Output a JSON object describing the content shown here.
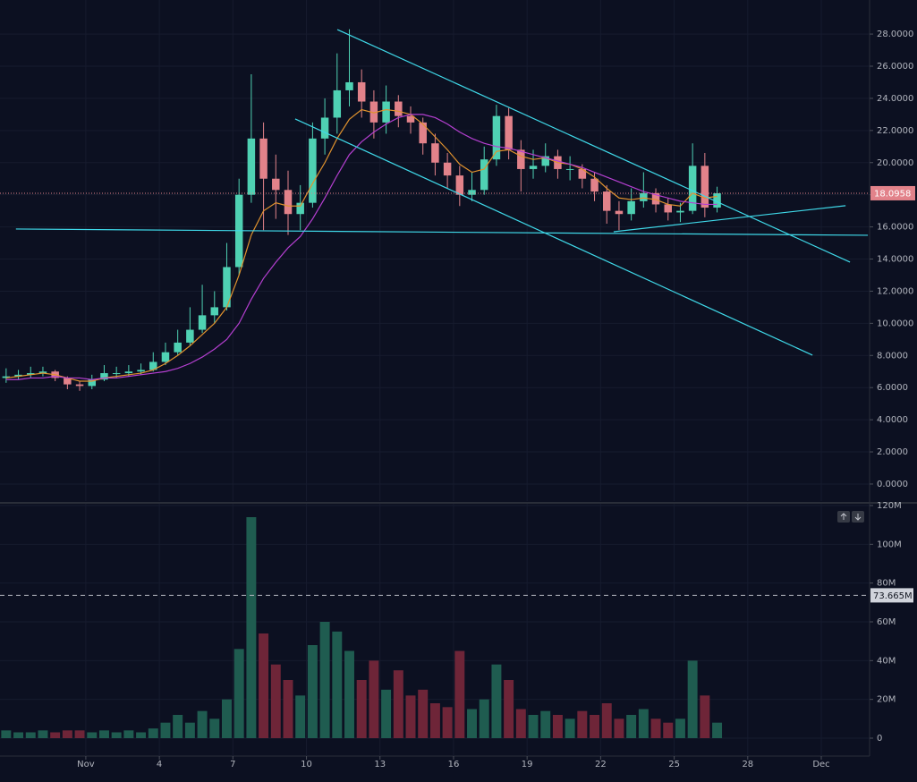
{
  "chart_data": [
    {
      "type": "candlestick",
      "x": [
        -2.25,
        -1.75,
        -1.25,
        -0.75,
        -0.25,
        0.25,
        0.75,
        1.25,
        1.75,
        2.25,
        2.75,
        3.25,
        3.75,
        4.25,
        4.75,
        5.25,
        5.75,
        6.25,
        6.75,
        7.25,
        7.75,
        8.25,
        8.75,
        9.25,
        9.75,
        10.25,
        10.75,
        11.25,
        11.75,
        12.25,
        12.75,
        13.25,
        13.75,
        14.25,
        14.75,
        15.25,
        15.75,
        16.25,
        16.75,
        17.25,
        17.75,
        18.25,
        18.75,
        19.25,
        19.75,
        20.25,
        20.75,
        21.25,
        21.75,
        22.25,
        22.75,
        23.25,
        23.75,
        24.25,
        24.75,
        25.25,
        25.75,
        26.25,
        26.75
      ],
      "open": [
        6.6,
        6.7,
        6.8,
        6.9,
        7.0,
        6.6,
        6.2,
        6.1,
        6.5,
        6.9,
        6.9,
        7.0,
        7.1,
        7.6,
        8.2,
        8.8,
        9.6,
        10.5,
        11.0,
        13.5,
        18.0,
        21.5,
        19.0,
        18.3,
        16.8,
        17.5,
        21.5,
        22.8,
        24.5,
        25.0,
        23.8,
        22.5,
        23.8,
        22.9,
        22.5,
        21.2,
        20.0,
        19.2,
        18.0,
        18.3,
        20.2,
        22.9,
        20.8,
        19.6,
        19.8,
        20.4,
        19.6,
        19.6,
        19.0,
        18.2,
        17.0,
        16.8,
        17.6,
        18.1,
        17.4,
        16.9,
        17.0,
        19.8,
        17.2
      ],
      "high": [
        7.2,
        7.1,
        7.3,
        7.3,
        7.1,
        6.7,
        6.4,
        6.8,
        7.4,
        7.3,
        7.4,
        7.5,
        8.2,
        8.8,
        9.6,
        11.0,
        12.4,
        12.0,
        15.0,
        19.0,
        25.5,
        22.5,
        20.5,
        19.5,
        18.6,
        22.5,
        24.0,
        26.8,
        28.3,
        25.8,
        24.5,
        24.8,
        24.2,
        23.5,
        22.8,
        21.8,
        20.6,
        19.8,
        19.4,
        21.0,
        23.6,
        23.4,
        21.4,
        20.8,
        21.2,
        20.8,
        20.4,
        19.9,
        19.4,
        18.6,
        17.6,
        18.4,
        19.4,
        18.4,
        17.8,
        17.5,
        21.2,
        20.6,
        18.5
      ],
      "low": [
        6.3,
        6.5,
        6.6,
        6.7,
        6.4,
        5.9,
        5.8,
        5.9,
        6.4,
        6.6,
        6.7,
        6.8,
        7.0,
        7.4,
        8.0,
        8.6,
        9.4,
        10.0,
        10.8,
        13.0,
        17.5,
        15.8,
        16.5,
        15.5,
        15.8,
        17.2,
        20.5,
        21.8,
        23.5,
        22.8,
        21.5,
        21.8,
        22.2,
        21.8,
        20.5,
        19.2,
        18.4,
        17.3,
        17.6,
        18.0,
        19.8,
        20.2,
        18.2,
        19.0,
        19.4,
        19.0,
        18.9,
        18.4,
        17.6,
        16.2,
        15.8,
        16.4,
        17.2,
        16.9,
        16.4,
        16.3,
        16.8,
        16.6,
        16.9
      ],
      "close": [
        6.7,
        6.8,
        6.9,
        7.0,
        6.6,
        6.2,
        6.1,
        6.5,
        6.9,
        6.9,
        7.0,
        7.1,
        7.6,
        8.2,
        8.8,
        9.6,
        10.5,
        11.0,
        13.5,
        18.0,
        21.5,
        19.0,
        18.3,
        16.8,
        17.5,
        21.5,
        22.8,
        24.5,
        25.0,
        23.8,
        22.5,
        23.8,
        22.9,
        22.5,
        21.2,
        20.0,
        19.2,
        18.0,
        18.3,
        20.2,
        22.9,
        20.8,
        19.6,
        19.8,
        20.4,
        19.6,
        19.6,
        19.0,
        18.2,
        17.0,
        16.8,
        17.6,
        18.1,
        17.4,
        16.9,
        17.0,
        19.8,
        17.2,
        18.0958
      ],
      "up_color": "#4fd1b3",
      "down_color": "#e2828a",
      "series": [
        {
          "color": "#e0922e",
          "values": [
            6.6,
            6.7,
            6.8,
            6.9,
            6.8,
            6.6,
            6.4,
            6.4,
            6.6,
            6.7,
            6.8,
            6.9,
            7.1,
            7.5,
            8.0,
            8.6,
            9.3,
            10.0,
            11.0,
            13.0,
            15.5,
            17.0,
            17.5,
            17.3,
            17.3,
            18.7,
            20.0,
            21.5,
            22.7,
            23.3,
            23.1,
            23.3,
            23.2,
            23.0,
            22.4,
            21.6,
            20.8,
            19.9,
            19.4,
            19.6,
            20.7,
            20.8,
            20.4,
            20.2,
            20.3,
            20.0,
            19.9,
            19.6,
            19.1,
            18.4,
            17.8,
            17.7,
            17.8,
            17.7,
            17.4,
            17.3,
            18.1,
            17.8,
            17.9
          ]
        },
        {
          "color": "#b43fd0",
          "values": [
            6.5,
            6.5,
            6.6,
            6.6,
            6.7,
            6.6,
            6.6,
            6.5,
            6.6,
            6.6,
            6.7,
            6.8,
            6.9,
            7.0,
            7.2,
            7.5,
            7.9,
            8.4,
            9.0,
            10.0,
            11.5,
            12.8,
            13.8,
            14.7,
            15.4,
            16.5,
            17.8,
            19.2,
            20.5,
            21.3,
            21.9,
            22.4,
            22.8,
            23.0,
            23.0,
            22.8,
            22.4,
            21.9,
            21.5,
            21.2,
            21.0,
            20.9,
            20.7,
            20.5,
            20.3,
            20.1,
            19.9,
            19.7,
            19.4,
            19.1,
            18.8,
            18.5,
            18.2,
            18.0,
            17.8,
            17.6,
            17.5,
            17.4,
            17.4
          ]
        }
      ],
      "trendlines": [
        {
          "color": "#3fd8e8",
          "x": [
            11.26,
            32.17
          ],
          "y": [
            28.28,
            13.81
          ]
        },
        {
          "color": "#3fd8e8",
          "x": [
            9.54,
            30.64
          ],
          "y": [
            22.72,
            8.02
          ]
        },
        {
          "color": "#3fd8e8",
          "x": [
            -1.85,
            32.9
          ],
          "y": [
            15.87,
            15.48
          ]
        },
        {
          "color": "#3fd8e8",
          "x": [
            22.53,
            31.99
          ],
          "y": [
            15.7,
            17.32
          ]
        }
      ],
      "last_price": 18.0958,
      "xlim": [
        -2.5,
        32.97
      ],
      "ylim": [
        -1.06,
        30.12
      ],
      "yticks": [
        {
          "value": 0,
          "label": "0.0000"
        },
        {
          "value": 2,
          "label": "2.0000"
        },
        {
          "value": 4,
          "label": "4.0000"
        },
        {
          "value": 6,
          "label": "6.0000"
        },
        {
          "value": 8,
          "label": "8.0000"
        },
        {
          "value": 10,
          "label": "10.0000"
        },
        {
          "value": 12,
          "label": "12.0000"
        },
        {
          "value": 14,
          "label": "14.0000"
        },
        {
          "value": 16,
          "label": "16.0000"
        },
        {
          "value": 18,
          "label": "18.0000"
        },
        {
          "value": 20,
          "label": "20.0000"
        },
        {
          "value": 22,
          "label": "22.0000"
        },
        {
          "value": 24,
          "label": "24.0000"
        },
        {
          "value": 26,
          "label": "26.0000"
        },
        {
          "value": 28,
          "label": "28.0000"
        }
      ],
      "grid": true
    },
    {
      "type": "bar",
      "x": [
        -2.25,
        -1.75,
        -1.25,
        -0.75,
        -0.25,
        0.25,
        0.75,
        1.25,
        1.75,
        2.25,
        2.75,
        3.25,
        3.75,
        4.25,
        4.75,
        5.25,
        5.75,
        6.25,
        6.75,
        7.25,
        7.75,
        8.25,
        8.75,
        9.25,
        9.75,
        10.25,
        10.75,
        11.25,
        11.75,
        12.25,
        12.75,
        13.25,
        13.75,
        14.25,
        14.75,
        15.25,
        15.75,
        16.25,
        16.75,
        17.25,
        17.75,
        18.25,
        18.75,
        19.25,
        19.75,
        20.25,
        20.75,
        21.25,
        21.75,
        22.25,
        22.75,
        23.25,
        23.75,
        24.25,
        24.75,
        25.25,
        25.75,
        26.25,
        26.75
      ],
      "values": [
        4000000,
        3000000,
        3000000,
        4000000,
        3000000,
        4000000,
        4000000,
        3000000,
        4000000,
        3000000,
        4000000,
        3000000,
        5000000,
        8000000,
        12000000,
        8000000,
        14000000,
        10000000,
        20000000,
        46000000,
        114000000,
        54000000,
        38000000,
        30000000,
        22000000,
        48000000,
        60000000,
        55000000,
        45000000,
        30000000,
        40000000,
        25000000,
        35000000,
        22000000,
        25000000,
        18000000,
        16000000,
        45000000,
        15000000,
        20000000,
        38000000,
        30000000,
        15000000,
        12000000,
        14000000,
        12000000,
        10000000,
        14000000,
        12000000,
        18000000,
        10000000,
        12000000,
        15000000,
        10000000,
        8000000,
        10000000,
        40000000,
        22000000,
        8000000
      ],
      "up_color": "#1f5c50",
      "down_color": "#6e2538",
      "reference_line": {
        "value": 73665000,
        "label": "73.665M"
      },
      "xlim": [
        -2.5,
        32.97
      ],
      "xticks": [
        {
          "value": 1,
          "label": "Nov"
        },
        4,
        7,
        10,
        13,
        16,
        19,
        22,
        25,
        28,
        {
          "value": 31,
          "label": "Dec"
        }
      ],
      "ylim": [
        -9230000,
        120920000
      ],
      "yticks": [
        {
          "value": 0,
          "label": "0"
        },
        {
          "value": 20000000,
          "label": "20M"
        },
        {
          "value": 40000000,
          "label": "40M"
        },
        {
          "value": 60000000,
          "label": "60M"
        },
        {
          "value": 80000000,
          "label": "80M"
        },
        {
          "value": 100000000,
          "label": "100M"
        },
        {
          "value": 120000000,
          "label": "120M"
        }
      ],
      "grid": true
    }
  ]
}
